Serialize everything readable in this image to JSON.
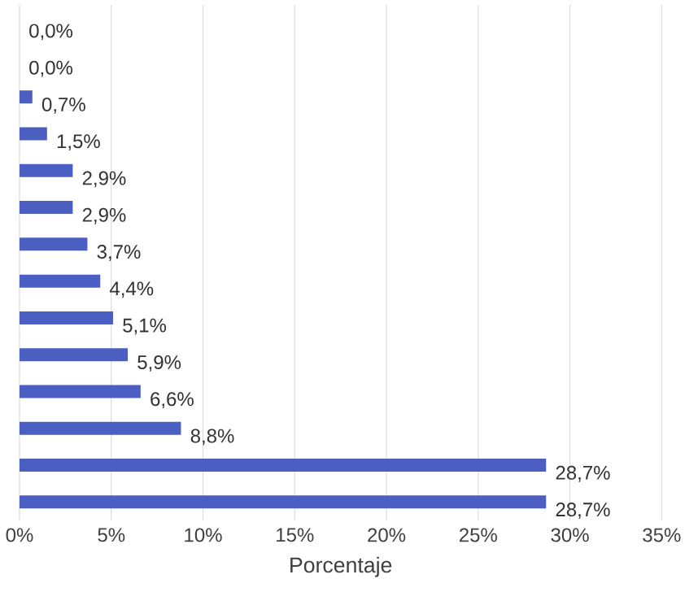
{
  "chart_data": {
    "type": "bar",
    "orientation": "horizontal",
    "categories": [
      null,
      null,
      null,
      null,
      null,
      null,
      null,
      null,
      null,
      null,
      null,
      null,
      null,
      null
    ],
    "values": [
      0.0,
      0.0,
      0.7,
      1.5,
      2.9,
      2.9,
      3.7,
      4.4,
      5.1,
      5.9,
      6.6,
      8.8,
      28.7,
      28.7
    ],
    "value_labels": [
      "0,0%",
      "0,0%",
      "0,7%",
      "1,5%",
      "2,9%",
      "2,9%",
      "3,7%",
      "4,4%",
      "5,1%",
      "5,9%",
      "6,6%",
      "8,8%",
      "28,7%",
      "28,7%"
    ],
    "color": "#4a5fc1",
    "xlabel": "Porcentaje",
    "xlim": [
      0,
      35
    ],
    "xticks": [
      {
        "value": 0,
        "label": "0%"
      },
      {
        "value": 5,
        "label": "5%"
      },
      {
        "value": 10,
        "label": "10%"
      },
      {
        "value": 15,
        "label": "15%"
      },
      {
        "value": 20,
        "label": "20%"
      },
      {
        "value": 25,
        "label": "25%"
      },
      {
        "value": 30,
        "label": "30%"
      },
      {
        "value": 35,
        "label": "35%"
      }
    ],
    "grid": "x"
  }
}
